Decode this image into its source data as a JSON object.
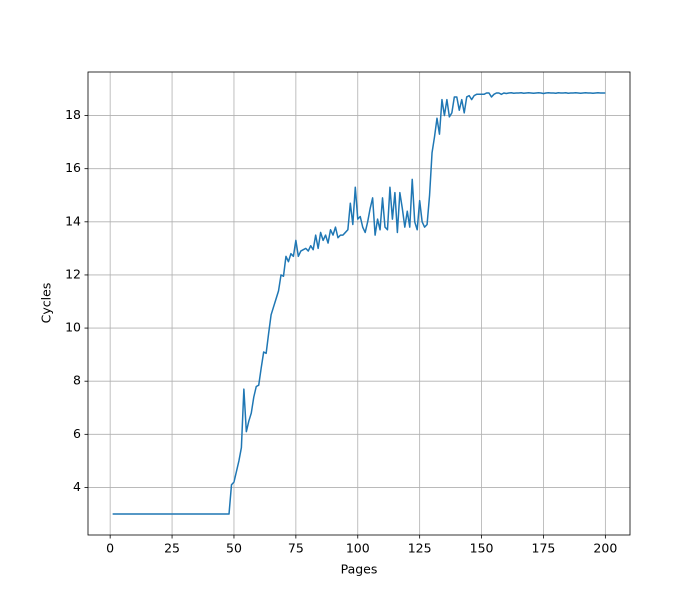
{
  "chart_data": {
    "type": "line",
    "xlabel": "Pages",
    "ylabel": "Cycles",
    "x": [
      1,
      2,
      3,
      4,
      5,
      6,
      7,
      8,
      9,
      10,
      11,
      12,
      13,
      14,
      15,
      16,
      17,
      18,
      19,
      20,
      21,
      22,
      23,
      24,
      25,
      26,
      27,
      28,
      29,
      30,
      31,
      32,
      33,
      34,
      35,
      36,
      37,
      38,
      39,
      40,
      41,
      42,
      43,
      44,
      45,
      46,
      47,
      48,
      49,
      50,
      51,
      52,
      53,
      54,
      55,
      56,
      57,
      58,
      59,
      60,
      61,
      62,
      63,
      64,
      65,
      66,
      67,
      68,
      69,
      70,
      71,
      72,
      73,
      74,
      75,
      76,
      77,
      78,
      79,
      80,
      81,
      82,
      83,
      84,
      85,
      86,
      87,
      88,
      89,
      90,
      91,
      92,
      93,
      94,
      95,
      96,
      97,
      98,
      99,
      100,
      101,
      102,
      103,
      104,
      105,
      106,
      107,
      108,
      109,
      110,
      111,
      112,
      113,
      114,
      115,
      116,
      117,
      118,
      119,
      120,
      121,
      122,
      123,
      124,
      125,
      126,
      127,
      128,
      129,
      130,
      131,
      132,
      133,
      134,
      135,
      136,
      137,
      138,
      139,
      140,
      141,
      142,
      143,
      144,
      145,
      146,
      147,
      148,
      149,
      150,
      151,
      152,
      153,
      154,
      155,
      156,
      157,
      158,
      159,
      160,
      161,
      162,
      163,
      164,
      165,
      166,
      167,
      168,
      169,
      170,
      171,
      172,
      173,
      174,
      175,
      176,
      177,
      178,
      179,
      180,
      181,
      182,
      183,
      184,
      185,
      186,
      187,
      188,
      189,
      190,
      191,
      192,
      193,
      194,
      195,
      196,
      197,
      198,
      199,
      200
    ],
    "series": [
      {
        "name": "Cycles",
        "color": "#1f77b4",
        "values": [
          3,
          3,
          3,
          3,
          3,
          3,
          3,
          3,
          3,
          3,
          3,
          3,
          3,
          3,
          3,
          3,
          3,
          3,
          3,
          3,
          3,
          3,
          3,
          3,
          3,
          3,
          3,
          3,
          3,
          3,
          3,
          3,
          3,
          3,
          3,
          3,
          3,
          3,
          3,
          3,
          3,
          3,
          3,
          3,
          3,
          3,
          3,
          3,
          4.1,
          4.2,
          4.6,
          5.0,
          5.5,
          7.7,
          6.1,
          6.5,
          6.8,
          7.4,
          7.8,
          7.85,
          8.5,
          9.1,
          9.05,
          9.8,
          10.5,
          10.8,
          11.1,
          11.4,
          12.0,
          11.95,
          12.7,
          12.5,
          12.8,
          12.7,
          13.3,
          12.7,
          12.9,
          12.95,
          13.0,
          12.9,
          13.1,
          12.95,
          13.5,
          13.0,
          13.6,
          13.3,
          13.5,
          13.2,
          13.7,
          13.5,
          13.8,
          13.4,
          13.5,
          13.5,
          13.6,
          13.7,
          14.7,
          13.9,
          15.3,
          14.1,
          14.2,
          13.8,
          13.6,
          14.0,
          14.5,
          14.9,
          13.5,
          14.1,
          13.7,
          14.9,
          13.8,
          13.7,
          15.3,
          14.1,
          15.1,
          13.6,
          15.1,
          14.5,
          13.8,
          14.4,
          13.8,
          15.6,
          14.0,
          13.7,
          14.8,
          14.0,
          13.8,
          13.9,
          15.0,
          16.6,
          17.2,
          17.9,
          17.3,
          18.6,
          18.0,
          18.6,
          17.95,
          18.1,
          18.7,
          18.7,
          18.2,
          18.6,
          18.1,
          18.7,
          18.75,
          18.6,
          18.75,
          18.8,
          18.8,
          18.8,
          18.8,
          18.85,
          18.85,
          18.7,
          18.8,
          18.85,
          18.85,
          18.8,
          18.85,
          18.83,
          18.85,
          18.86,
          18.84,
          18.85,
          18.85,
          18.86,
          18.84,
          18.85,
          18.86,
          18.85,
          18.84,
          18.85,
          18.86,
          18.85,
          18.83,
          18.85,
          18.86,
          18.85,
          18.85,
          18.84,
          18.86,
          18.85,
          18.85,
          18.86,
          18.84,
          18.85,
          18.85,
          18.86,
          18.85,
          18.84,
          18.85,
          18.86,
          18.85,
          18.85,
          18.84,
          18.85,
          18.86,
          18.85,
          18.85,
          18.85
        ]
      }
    ],
    "xlim": [
      -8.95,
      209.95
    ],
    "xticks": [
      0,
      25,
      50,
      75,
      100,
      125,
      150,
      175,
      200
    ],
    "ylim": [
      2.21,
      19.64
    ],
    "yticks": [
      4,
      6,
      8,
      10,
      12,
      14,
      16,
      18
    ],
    "grid": true
  }
}
